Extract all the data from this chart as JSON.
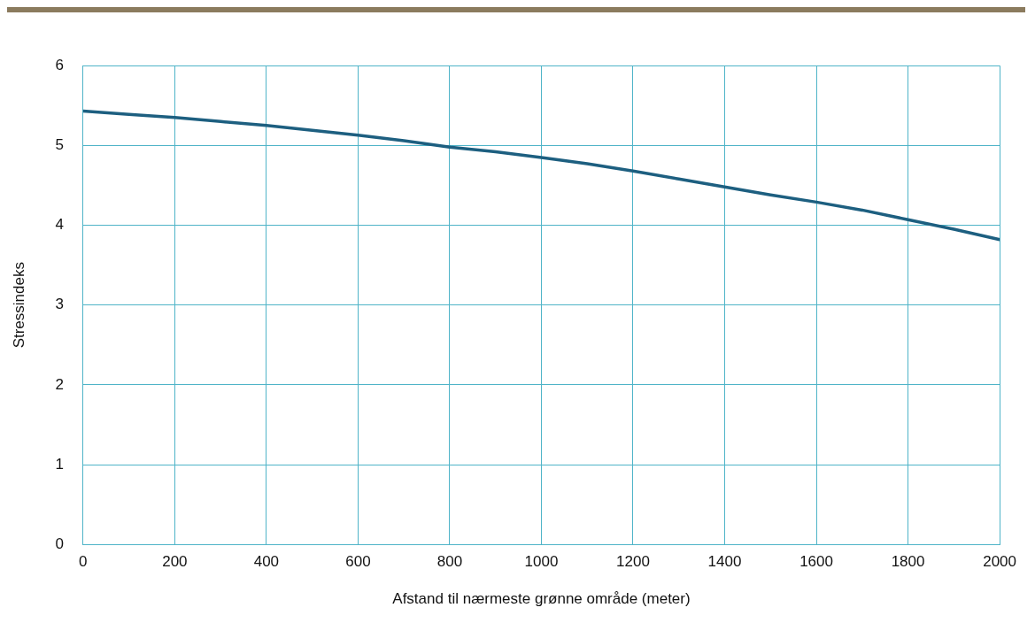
{
  "chart_data": {
    "type": "line",
    "xlabel": "Afstand til nærmeste grønne område (meter)",
    "ylabel": "Stressindeks",
    "x": [
      0,
      100,
      200,
      300,
      400,
      500,
      600,
      700,
      800,
      900,
      1000,
      1100,
      1200,
      1300,
      1400,
      1500,
      1600,
      1700,
      1800,
      1900,
      2000
    ],
    "series": [
      {
        "color": "#1d5f80",
        "values": [
          5.43,
          5.39,
          5.35,
          5.3,
          5.25,
          5.19,
          5.13,
          5.06,
          4.98,
          4.92,
          4.85,
          4.77,
          4.68,
          4.58,
          4.48,
          4.38,
          4.29,
          4.19,
          4.07,
          3.95,
          3.82
        ]
      }
    ],
    "xlim": [
      0,
      2000
    ],
    "xticks": [
      0,
      200,
      400,
      600,
      800,
      1000,
      1200,
      1400,
      1600,
      1800,
      2000
    ],
    "ylim": [
      0,
      6
    ],
    "yticks": [
      0,
      1,
      2,
      3,
      4,
      5,
      6
    ],
    "grid": true,
    "legend": false,
    "marker": "none",
    "line_style": "solid"
  }
}
